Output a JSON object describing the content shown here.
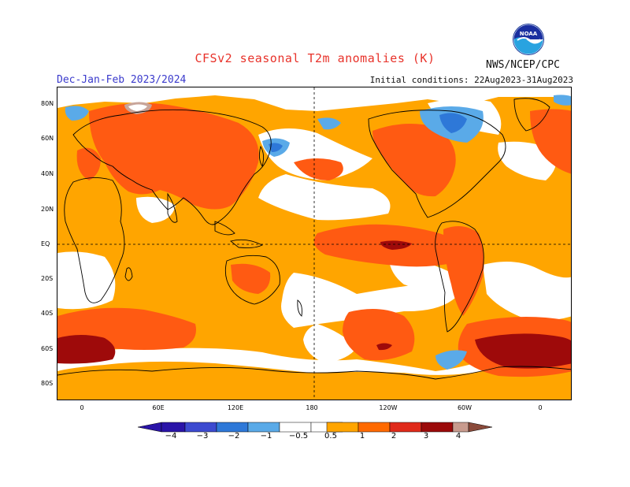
{
  "title": "CFSv2 seasonal T2m anomalies (K)",
  "season": "Dec-Jan-Feb 2023/2024",
  "initial_conditions": "Initial conditions: 22Aug2023-31Aug2023",
  "agency": "NWS/NCEP/CPC",
  "logo_text": "NOAA",
  "lat_labels": [
    "80N",
    "60N",
    "40N",
    "20N",
    "EQ",
    "20S",
    "40S",
    "60S",
    "80S"
  ],
  "lon_labels": [
    "0",
    "60E",
    "120E",
    "180",
    "120W",
    "60W",
    "0"
  ],
  "colorbar": {
    "labels": [
      "−4",
      "−3",
      "−2",
      "−1",
      "−0.5",
      "0.5",
      "1",
      "2",
      "3",
      "4"
    ],
    "colors": [
      "#2a14a8",
      "#3c4ad0",
      "#2e78d8",
      "#5aaae8",
      "#ffffff",
      "#ffa500",
      "#ff6a00",
      "#e02a1a",
      "#9b0a0a",
      "#c89b8e",
      "#8a4a3a"
    ]
  },
  "palette": {
    "weak_warm": "#ffa500",
    "warm": "#ff5a12",
    "strong_warm": "#9e0a0a",
    "neutral": "#ffffff",
    "cold": "#5aaae8",
    "colder": "#2e78d8",
    "warmest": "#c8a59a"
  }
}
